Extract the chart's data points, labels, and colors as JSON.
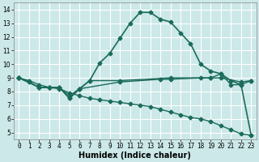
{
  "xlabel": "Humidex (Indice chaleur)",
  "bg_color": "#cce8e8",
  "grid_color": "#ffffff",
  "line_color": "#1a6b5a",
  "lines": [
    {
      "x": [
        0,
        1,
        2,
        3,
        4,
        5,
        6,
        7,
        8,
        9,
        10,
        11,
        12,
        13,
        14,
        15,
        16,
        17,
        18,
        19,
        20,
        21,
        22,
        23
      ],
      "y": [
        9.0,
        8.7,
        8.3,
        8.3,
        8.3,
        7.5,
        8.2,
        8.8,
        10.1,
        10.8,
        11.9,
        13.0,
        13.8,
        13.8,
        13.3,
        13.1,
        12.3,
        11.5,
        10.0,
        9.5,
        9.3,
        8.8,
        8.5,
        4.8
      ],
      "marker": "D",
      "markersize": 2.5,
      "linewidth": 1.2
    },
    {
      "x": [
        0,
        2,
        3,
        4,
        5,
        6,
        7,
        10,
        15,
        19,
        20,
        21,
        22,
        23
      ],
      "y": [
        9.0,
        8.3,
        8.3,
        8.3,
        7.5,
        8.2,
        8.8,
        8.8,
        9.0,
        9.0,
        9.3,
        8.5,
        8.5,
        8.8
      ],
      "marker": "D",
      "markersize": 2.5,
      "linewidth": 1.0
    },
    {
      "x": [
        0,
        2,
        3,
        4,
        5,
        6,
        10,
        14,
        15,
        18,
        19,
        20,
        22,
        23
      ],
      "y": [
        9.0,
        8.3,
        8.3,
        8.3,
        7.7,
        8.2,
        8.7,
        8.9,
        8.9,
        9.0,
        9.0,
        9.0,
        8.7,
        8.8
      ],
      "marker": "D",
      "markersize": 2.5,
      "linewidth": 1.0
    },
    {
      "x": [
        0,
        1,
        2,
        3,
        4,
        5,
        6,
        7,
        8,
        9,
        10,
        11,
        12,
        13,
        14,
        15,
        16,
        17,
        18,
        19,
        20,
        21,
        22,
        23
      ],
      "y": [
        9.0,
        8.8,
        8.5,
        8.3,
        8.2,
        7.9,
        7.7,
        7.5,
        7.4,
        7.3,
        7.2,
        7.1,
        7.0,
        6.9,
        6.7,
        6.5,
        6.3,
        6.1,
        6.0,
        5.8,
        5.5,
        5.2,
        4.9,
        4.8
      ],
      "marker": "D",
      "markersize": 2.5,
      "linewidth": 1.0
    }
  ],
  "xlim": [
    -0.5,
    23.5
  ],
  "ylim": [
    4.5,
    14.5
  ],
  "xticks": [
    0,
    1,
    2,
    3,
    4,
    5,
    6,
    7,
    8,
    9,
    10,
    11,
    12,
    13,
    14,
    15,
    16,
    17,
    18,
    19,
    20,
    21,
    22,
    23
  ],
  "yticks": [
    5,
    6,
    7,
    8,
    9,
    10,
    11,
    12,
    13,
    14
  ],
  "tick_fontsize": 5.5,
  "label_fontsize": 7.0
}
